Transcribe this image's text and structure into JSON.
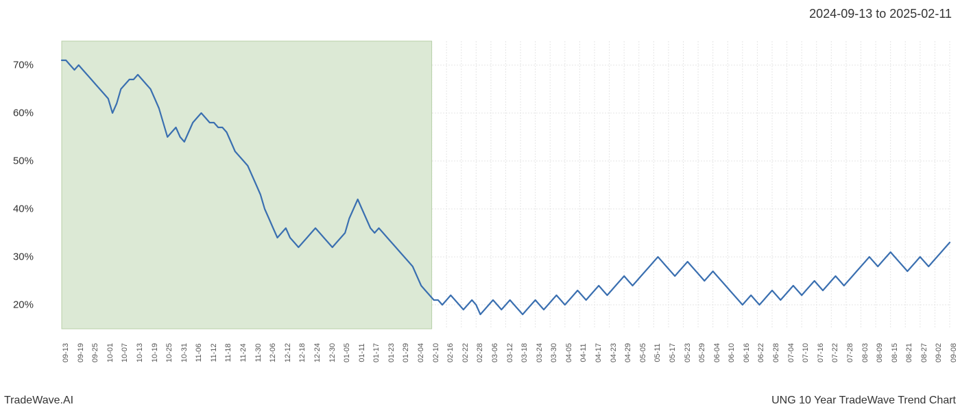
{
  "header": {
    "date_range": "2024-09-13 to 2025-02-11"
  },
  "footer": {
    "brand": "TradeWave.AI",
    "chart_title": "UNG 10 Year TradeWave Trend Chart"
  },
  "chart": {
    "type": "line",
    "ylim": [
      15,
      75
    ],
    "yticks": [
      20,
      30,
      40,
      50,
      60,
      70
    ],
    "ytick_labels": [
      "20%",
      "30%",
      "40%",
      "50%",
      "60%",
      "70%"
    ],
    "x_tick_labels": [
      "09-13",
      "09-19",
      "09-25",
      "10-01",
      "10-07",
      "10-13",
      "10-19",
      "10-25",
      "10-31",
      "11-06",
      "11-12",
      "11-18",
      "11-24",
      "11-30",
      "12-06",
      "12-12",
      "12-18",
      "12-24",
      "12-30",
      "01-05",
      "01-11",
      "01-17",
      "01-23",
      "01-29",
      "02-04",
      "02-10",
      "02-16",
      "02-22",
      "02-28",
      "03-06",
      "03-12",
      "03-18",
      "03-24",
      "03-30",
      "04-05",
      "04-11",
      "04-17",
      "04-23",
      "04-29",
      "05-05",
      "05-11",
      "05-17",
      "05-23",
      "05-29",
      "06-04",
      "06-10",
      "06-16",
      "06-22",
      "06-28",
      "07-04",
      "07-10",
      "07-16",
      "07-22",
      "07-28",
      "08-03",
      "08-09",
      "08-15",
      "08-21",
      "08-27",
      "09-02",
      "09-08"
    ],
    "highlight_region": {
      "start_index": 0,
      "end_index": 25
    },
    "series": {
      "values": [
        71,
        71,
        70,
        69,
        70,
        69,
        68,
        67,
        66,
        65,
        64,
        63,
        60,
        62,
        65,
        66,
        67,
        67,
        68,
        67,
        66,
        65,
        63,
        61,
        58,
        55,
        56,
        57,
        55,
        54,
        56,
        58,
        59,
        60,
        59,
        58,
        58,
        57,
        57,
        56,
        54,
        52,
        51,
        50,
        49,
        47,
        45,
        43,
        40,
        38,
        36,
        34,
        35,
        36,
        34,
        33,
        32,
        33,
        34,
        35,
        36,
        35,
        34,
        33,
        32,
        33,
        34,
        35,
        38,
        40,
        42,
        40,
        38,
        36,
        35,
        36,
        35,
        34,
        33,
        32,
        31,
        30,
        29,
        28,
        26,
        24,
        23,
        22,
        21,
        21,
        20,
        21,
        22,
        21,
        20,
        19,
        20,
        21,
        20,
        18,
        19,
        20,
        21,
        20,
        19,
        20,
        21,
        20,
        19,
        18,
        19,
        20,
        21,
        20,
        19,
        20,
        21,
        22,
        21,
        20,
        21,
        22,
        23,
        22,
        21,
        22,
        23,
        24,
        23,
        22,
        23,
        24,
        25,
        26,
        25,
        24,
        25,
        26,
        27,
        28,
        29,
        30,
        29,
        28,
        27,
        26,
        27,
        28,
        29,
        28,
        27,
        26,
        25,
        26,
        27,
        26,
        25,
        24,
        23,
        22,
        21,
        20,
        21,
        22,
        21,
        20,
        21,
        22,
        23,
        22,
        21,
        22,
        23,
        24,
        23,
        22,
        23,
        24,
        25,
        24,
        23,
        24,
        25,
        26,
        25,
        24,
        25,
        26,
        27,
        28,
        29,
        30,
        29,
        28,
        29,
        30,
        31,
        30,
        29,
        28,
        27,
        28,
        29,
        30,
        29,
        28,
        29,
        30,
        31,
        32,
        33
      ],
      "line_color": "#3a6fb0",
      "line_width": 2.2
    },
    "styling": {
      "background_color": "#ffffff",
      "highlight_fill": "#dce9d5",
      "highlight_stroke": "#b8cfa8",
      "grid_color": "#e5e5e5",
      "grid_dash": "2,2",
      "axis_font_size": 15,
      "tick_font_size": 11
    }
  }
}
